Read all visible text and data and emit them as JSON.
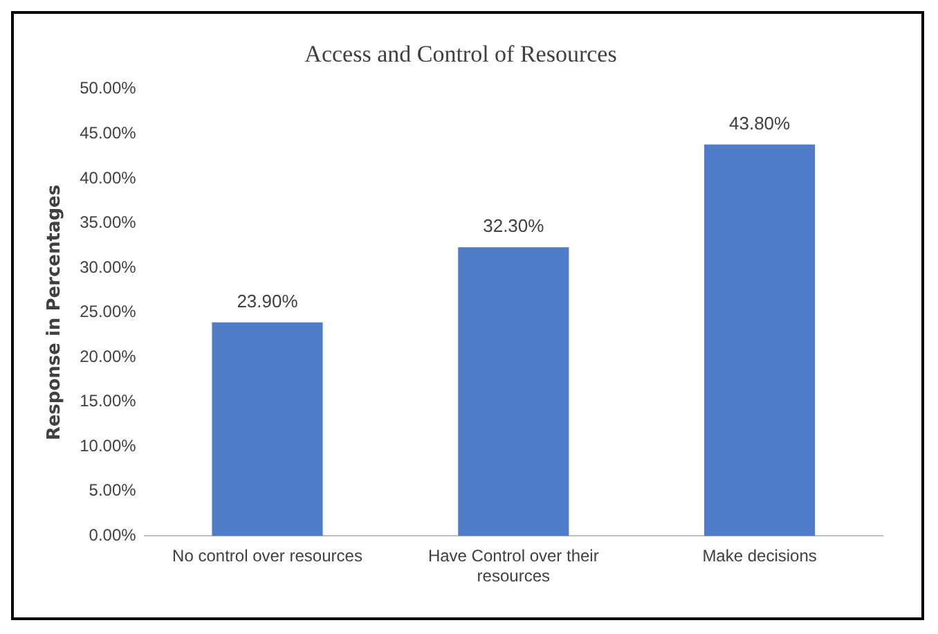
{
  "chart_data": {
    "type": "bar",
    "title": "Access and Control of Resources",
    "ylabel": "Response in Percentages",
    "categories": [
      "No control over resources",
      "Have Control over their resources",
      "Make decisions"
    ],
    "values": [
      23.9,
      32.3,
      43.8
    ],
    "color": "#4f7cc6",
    "value_labels": [
      "23.90%",
      "32.30%",
      "43.80%"
    ],
    "ylim": [
      0,
      50
    ],
    "yticks": [
      {
        "value": 0,
        "label": "0.00%"
      },
      {
        "value": 5,
        "label": "5.00%"
      },
      {
        "value": 10,
        "label": "10.00%"
      },
      {
        "value": 15,
        "label": "15.00%"
      },
      {
        "value": 20,
        "label": "20.00%"
      },
      {
        "value": 25,
        "label": "25.00%"
      },
      {
        "value": 30,
        "label": "30.00%"
      },
      {
        "value": 35,
        "label": "35.00%"
      },
      {
        "value": 40,
        "label": "40.00%"
      },
      {
        "value": 45,
        "label": "45.00%"
      },
      {
        "value": 50,
        "label": "50.00%"
      }
    ],
    "grid": false,
    "legend": false
  }
}
